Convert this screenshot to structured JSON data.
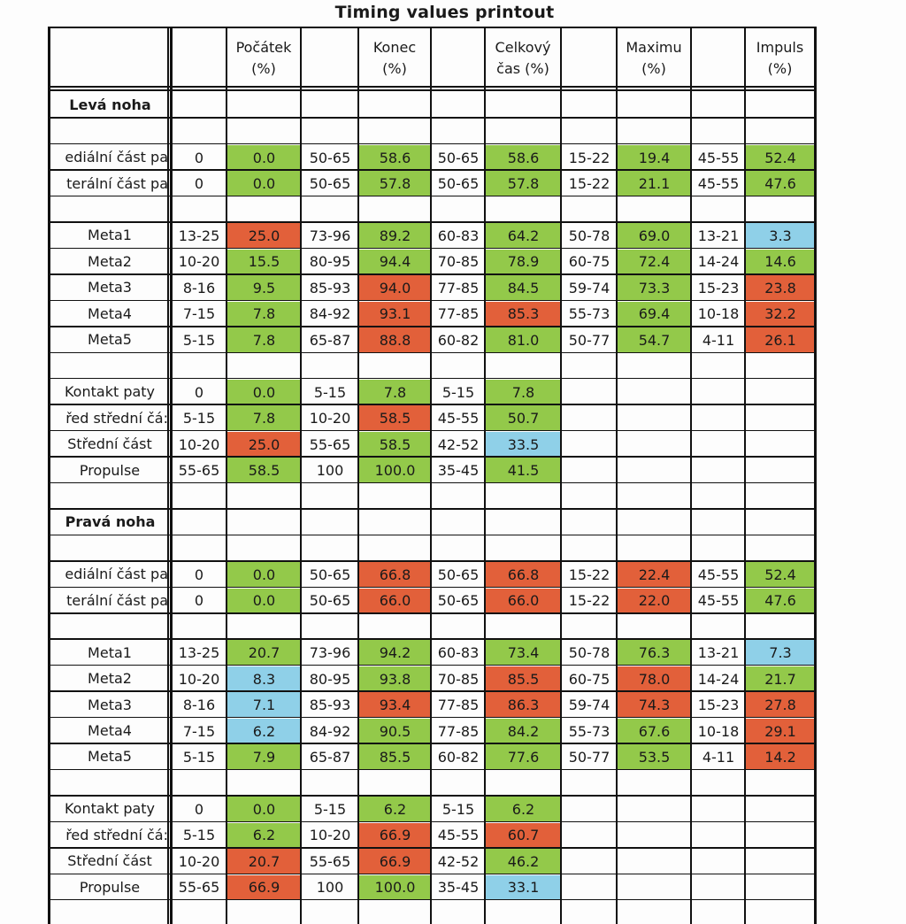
{
  "title": "Timing values printout",
  "colors": {
    "green": "#93c94a",
    "red": "#e2603a",
    "blue": "#8fd0e8"
  },
  "header": {
    "columns": [
      {
        "line1": "Počátek",
        "line2": "(%)"
      },
      {
        "line1": "Konec",
        "line2": "(%)"
      },
      {
        "line1": "Celkový",
        "line2": "čas (%)"
      },
      {
        "line1": "Maximu",
        "line2": "(%)"
      },
      {
        "line1": "Impuls",
        "line2": "(%)"
      }
    ]
  },
  "rows": [
    {
      "type": "section",
      "label": "Levá noha"
    },
    {
      "type": "blank"
    },
    {
      "type": "data",
      "label": "ediální část pa",
      "clip": true,
      "cells": [
        [
          "0",
          ""
        ],
        [
          "0.0",
          "green"
        ],
        [
          "50-65",
          ""
        ],
        [
          "58.6",
          "green"
        ],
        [
          "50-65",
          ""
        ],
        [
          "58.6",
          "green"
        ],
        [
          "15-22",
          ""
        ],
        [
          "19.4",
          "green"
        ],
        [
          "45-55",
          ""
        ],
        [
          "52.4",
          "green"
        ]
      ]
    },
    {
      "type": "data",
      "label": "terální část pa",
      "clip": true,
      "cells": [
        [
          "0",
          ""
        ],
        [
          "0.0",
          "green"
        ],
        [
          "50-65",
          ""
        ],
        [
          "57.8",
          "green"
        ],
        [
          "50-65",
          ""
        ],
        [
          "57.8",
          "green"
        ],
        [
          "15-22",
          ""
        ],
        [
          "21.1",
          "green"
        ],
        [
          "45-55",
          ""
        ],
        [
          "47.6",
          "green"
        ]
      ]
    },
    {
      "type": "blank"
    },
    {
      "type": "data",
      "label": "Meta1",
      "cells": [
        [
          "13-25",
          ""
        ],
        [
          "25.0",
          "red"
        ],
        [
          "73-96",
          ""
        ],
        [
          "89.2",
          "green"
        ],
        [
          "60-83",
          ""
        ],
        [
          "64.2",
          "green"
        ],
        [
          "50-78",
          ""
        ],
        [
          "69.0",
          "green"
        ],
        [
          "13-21",
          ""
        ],
        [
          "3.3",
          "blue"
        ]
      ]
    },
    {
      "type": "data",
      "label": "Meta2",
      "cells": [
        [
          "10-20",
          ""
        ],
        [
          "15.5",
          "green"
        ],
        [
          "80-95",
          ""
        ],
        [
          "94.4",
          "green"
        ],
        [
          "70-85",
          ""
        ],
        [
          "78.9",
          "green"
        ],
        [
          "60-75",
          ""
        ],
        [
          "72.4",
          "green"
        ],
        [
          "14-24",
          ""
        ],
        [
          "14.6",
          "green"
        ]
      ]
    },
    {
      "type": "data",
      "label": "Meta3",
      "cells": [
        [
          "8-16",
          ""
        ],
        [
          "9.5",
          "green"
        ],
        [
          "85-93",
          ""
        ],
        [
          "94.0",
          "red"
        ],
        [
          "77-85",
          ""
        ],
        [
          "84.5",
          "green"
        ],
        [
          "59-74",
          ""
        ],
        [
          "73.3",
          "green"
        ],
        [
          "15-23",
          ""
        ],
        [
          "23.8",
          "red"
        ]
      ]
    },
    {
      "type": "data",
      "label": "Meta4",
      "cells": [
        [
          "7-15",
          ""
        ],
        [
          "7.8",
          "green"
        ],
        [
          "84-92",
          ""
        ],
        [
          "93.1",
          "red"
        ],
        [
          "77-85",
          ""
        ],
        [
          "85.3",
          "red"
        ],
        [
          "55-73",
          ""
        ],
        [
          "69.4",
          "green"
        ],
        [
          "10-18",
          ""
        ],
        [
          "32.2",
          "red"
        ]
      ]
    },
    {
      "type": "data",
      "label": "Meta5",
      "cells": [
        [
          "5-15",
          ""
        ],
        [
          "7.8",
          "green"
        ],
        [
          "65-87",
          ""
        ],
        [
          "88.8",
          "red"
        ],
        [
          "60-82",
          ""
        ],
        [
          "81.0",
          "green"
        ],
        [
          "50-77",
          ""
        ],
        [
          "54.7",
          "green"
        ],
        [
          "4-11",
          ""
        ],
        [
          "26.1",
          "red"
        ]
      ]
    },
    {
      "type": "blank"
    },
    {
      "type": "data",
      "label": "Kontakt paty",
      "cells": [
        [
          "0",
          ""
        ],
        [
          "0.0",
          "green"
        ],
        [
          "5-15",
          ""
        ],
        [
          "7.8",
          "green"
        ],
        [
          "5-15",
          ""
        ],
        [
          "7.8",
          "green"
        ],
        [
          "",
          ""
        ],
        [
          "",
          ""
        ],
        [
          "",
          ""
        ],
        [
          "",
          ""
        ]
      ]
    },
    {
      "type": "data",
      "label": "řed střední čá:",
      "clip": true,
      "cells": [
        [
          "5-15",
          ""
        ],
        [
          "7.8",
          "green"
        ],
        [
          "10-20",
          ""
        ],
        [
          "58.5",
          "red"
        ],
        [
          "45-55",
          ""
        ],
        [
          "50.7",
          "green"
        ],
        [
          "",
          ""
        ],
        [
          "",
          ""
        ],
        [
          "",
          ""
        ],
        [
          "",
          ""
        ]
      ]
    },
    {
      "type": "data",
      "label": "Střední část",
      "cells": [
        [
          "10-20",
          ""
        ],
        [
          "25.0",
          "red"
        ],
        [
          "55-65",
          ""
        ],
        [
          "58.5",
          "green"
        ],
        [
          "42-52",
          ""
        ],
        [
          "33.5",
          "blue"
        ],
        [
          "",
          ""
        ],
        [
          "",
          ""
        ],
        [
          "",
          ""
        ],
        [
          "",
          ""
        ]
      ]
    },
    {
      "type": "data",
      "label": "Propulse",
      "cells": [
        [
          "55-65",
          ""
        ],
        [
          "58.5",
          "green"
        ],
        [
          "100",
          ""
        ],
        [
          "100.0",
          "green"
        ],
        [
          "35-45",
          ""
        ],
        [
          "41.5",
          "green"
        ],
        [
          "",
          ""
        ],
        [
          "",
          ""
        ],
        [
          "",
          ""
        ],
        [
          "",
          ""
        ]
      ]
    },
    {
      "type": "blank"
    },
    {
      "type": "section",
      "label": "Pravá noha"
    },
    {
      "type": "blank"
    },
    {
      "type": "data",
      "label": "ediální část pa",
      "clip": true,
      "cells": [
        [
          "0",
          ""
        ],
        [
          "0.0",
          "green"
        ],
        [
          "50-65",
          ""
        ],
        [
          "66.8",
          "red"
        ],
        [
          "50-65",
          ""
        ],
        [
          "66.8",
          "red"
        ],
        [
          "15-22",
          ""
        ],
        [
          "22.4",
          "red"
        ],
        [
          "45-55",
          ""
        ],
        [
          "52.4",
          "green"
        ]
      ]
    },
    {
      "type": "data",
      "label": "terální část pa",
      "clip": true,
      "cells": [
        [
          "0",
          ""
        ],
        [
          "0.0",
          "green"
        ],
        [
          "50-65",
          ""
        ],
        [
          "66.0",
          "red"
        ],
        [
          "50-65",
          ""
        ],
        [
          "66.0",
          "red"
        ],
        [
          "15-22",
          ""
        ],
        [
          "22.0",
          "red"
        ],
        [
          "45-55",
          ""
        ],
        [
          "47.6",
          "green"
        ]
      ]
    },
    {
      "type": "blank"
    },
    {
      "type": "data",
      "label": "Meta1",
      "cells": [
        [
          "13-25",
          ""
        ],
        [
          "20.7",
          "green"
        ],
        [
          "73-96",
          ""
        ],
        [
          "94.2",
          "green"
        ],
        [
          "60-83",
          ""
        ],
        [
          "73.4",
          "green"
        ],
        [
          "50-78",
          ""
        ],
        [
          "76.3",
          "green"
        ],
        [
          "13-21",
          ""
        ],
        [
          "7.3",
          "blue"
        ]
      ]
    },
    {
      "type": "data",
      "label": "Meta2",
      "cells": [
        [
          "10-20",
          ""
        ],
        [
          "8.3",
          "blue"
        ],
        [
          "80-95",
          ""
        ],
        [
          "93.8",
          "green"
        ],
        [
          "70-85",
          ""
        ],
        [
          "85.5",
          "red"
        ],
        [
          "60-75",
          ""
        ],
        [
          "78.0",
          "red"
        ],
        [
          "14-24",
          ""
        ],
        [
          "21.7",
          "green"
        ]
      ]
    },
    {
      "type": "data",
      "label": "Meta3",
      "cells": [
        [
          "8-16",
          ""
        ],
        [
          "7.1",
          "blue"
        ],
        [
          "85-93",
          ""
        ],
        [
          "93.4",
          "red"
        ],
        [
          "77-85",
          ""
        ],
        [
          "86.3",
          "red"
        ],
        [
          "59-74",
          ""
        ],
        [
          "74.3",
          "red"
        ],
        [
          "15-23",
          ""
        ],
        [
          "27.8",
          "red"
        ]
      ]
    },
    {
      "type": "data",
      "label": "Meta4",
      "cells": [
        [
          "7-15",
          ""
        ],
        [
          "6.2",
          "blue"
        ],
        [
          "84-92",
          ""
        ],
        [
          "90.5",
          "green"
        ],
        [
          "77-85",
          ""
        ],
        [
          "84.2",
          "green"
        ],
        [
          "55-73",
          ""
        ],
        [
          "67.6",
          "green"
        ],
        [
          "10-18",
          ""
        ],
        [
          "29.1",
          "red"
        ]
      ]
    },
    {
      "type": "data",
      "label": "Meta5",
      "cells": [
        [
          "5-15",
          ""
        ],
        [
          "7.9",
          "green"
        ],
        [
          "65-87",
          ""
        ],
        [
          "85.5",
          "green"
        ],
        [
          "60-82",
          ""
        ],
        [
          "77.6",
          "green"
        ],
        [
          "50-77",
          ""
        ],
        [
          "53.5",
          "green"
        ],
        [
          "4-11",
          ""
        ],
        [
          "14.2",
          "red"
        ]
      ]
    },
    {
      "type": "blank"
    },
    {
      "type": "data",
      "label": "Kontakt paty",
      "cells": [
        [
          "0",
          ""
        ],
        [
          "0.0",
          "green"
        ],
        [
          "5-15",
          ""
        ],
        [
          "6.2",
          "green"
        ],
        [
          "5-15",
          ""
        ],
        [
          "6.2",
          "green"
        ],
        [
          "",
          ""
        ],
        [
          "",
          ""
        ],
        [
          "",
          ""
        ],
        [
          "",
          ""
        ]
      ]
    },
    {
      "type": "data",
      "label": "řed střední čá:",
      "clip": true,
      "cells": [
        [
          "5-15",
          ""
        ],
        [
          "6.2",
          "green"
        ],
        [
          "10-20",
          ""
        ],
        [
          "66.9",
          "red"
        ],
        [
          "45-55",
          ""
        ],
        [
          "60.7",
          "red"
        ],
        [
          "",
          ""
        ],
        [
          "",
          ""
        ],
        [
          "",
          ""
        ],
        [
          "",
          ""
        ]
      ]
    },
    {
      "type": "data",
      "label": "Střední část",
      "cells": [
        [
          "10-20",
          ""
        ],
        [
          "20.7",
          "red"
        ],
        [
          "55-65",
          ""
        ],
        [
          "66.9",
          "red"
        ],
        [
          "42-52",
          ""
        ],
        [
          "46.2",
          "green"
        ],
        [
          "",
          ""
        ],
        [
          "",
          ""
        ],
        [
          "",
          ""
        ],
        [
          "",
          ""
        ]
      ]
    },
    {
      "type": "data",
      "label": "Propulse",
      "cells": [
        [
          "55-65",
          ""
        ],
        [
          "66.9",
          "red"
        ],
        [
          "100",
          ""
        ],
        [
          "100.0",
          "green"
        ],
        [
          "35-45",
          ""
        ],
        [
          "33.1",
          "blue"
        ],
        [
          "",
          ""
        ],
        [
          "",
          ""
        ],
        [
          "",
          ""
        ],
        [
          "",
          ""
        ]
      ]
    }
  ]
}
